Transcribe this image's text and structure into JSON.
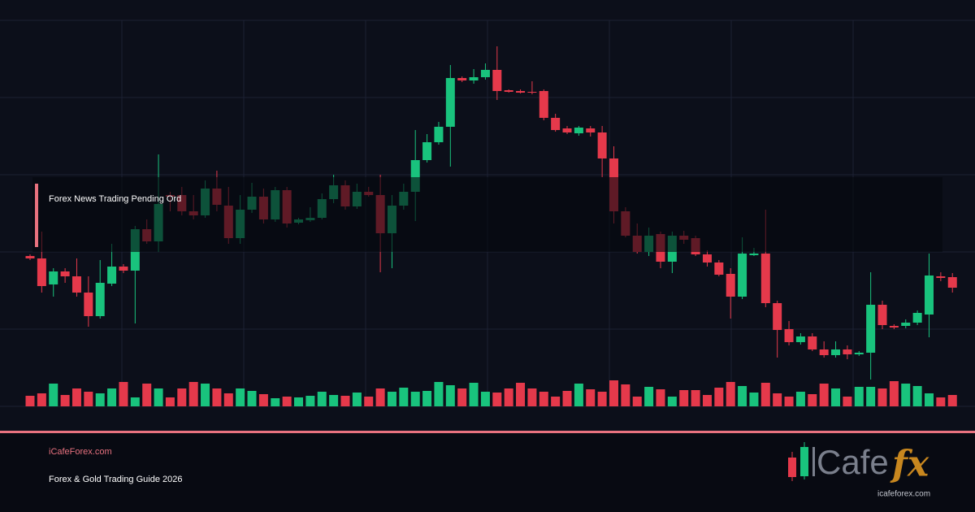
{
  "chart_data": {
    "type": "candlestick",
    "open": [
      370,
      364,
      300,
      332,
      320,
      280,
      222,
      302,
      344,
      334,
      436,
      406,
      520,
      520,
      480,
      470,
      536,
      494,
      414,
      484,
      516,
      460,
      532,
      452,
      458,
      464,
      510,
      544,
      492,
      528,
      520,
      426,
      494,
      528,
      606,
      650,
      688,
      808,
      802,
      810,
      828,
      778,
      776,
      774,
      776,
      710,
      684,
      672,
      684,
      674,
      610,
      480,
      420,
      380,
      424,
      356,
      420,
      414,
      374,
      354,
      326,
      270,
      372,
      376,
      254,
      190,
      158,
      172,
      140,
      126,
      140,
      128,
      132,
      250,
      198,
      198,
      206,
      226,
      320,
      318
    ],
    "close": [
      364,
      296,
      332,
      320,
      280,
      222,
      304,
      344,
      334,
      436,
      406,
      498,
      516,
      480,
      470,
      536,
      496,
      414,
      484,
      516,
      460,
      532,
      450,
      460,
      464,
      510,
      544,
      492,
      528,
      520,
      426,
      494,
      528,
      606,
      650,
      688,
      808,
      802,
      810,
      828,
      776,
      774,
      772,
      772,
      710,
      680,
      674,
      686,
      674,
      610,
      480,
      420,
      380,
      420,
      356,
      420,
      410,
      374,
      354,
      324,
      270,
      376,
      376,
      254,
      188,
      158,
      172,
      140,
      126,
      140,
      128,
      132,
      250,
      200,
      194,
      206,
      230,
      322,
      316,
      292
    ],
    "high": [
      374,
      430,
      340,
      340,
      364,
      320,
      360,
      400,
      350,
      444,
      460,
      620,
      528,
      540,
      520,
      556,
      580,
      540,
      520,
      550,
      536,
      540,
      540,
      464,
      490,
      524,
      570,
      556,
      548,
      540,
      570,
      520,
      548,
      680,
      670,
      700,
      840,
      812,
      830,
      844,
      886,
      780,
      780,
      800,
      780,
      720,
      690,
      690,
      690,
      690,
      640,
      490,
      450,
      440,
      430,
      430,
      432,
      420,
      384,
      360,
      340,
      416,
      390,
      484,
      260,
      210,
      180,
      180,
      160,
      160,
      150,
      136,
      330,
      260,
      202,
      214,
      236,
      376,
      330,
      328
    ],
    "low": [
      360,
      280,
      270,
      304,
      270,
      196,
      216,
      296,
      328,
      204,
      400,
      380,
      480,
      470,
      460,
      464,
      480,
      400,
      400,
      476,
      450,
      454,
      440,
      448,
      454,
      460,
      500,
      484,
      486,
      516,
      330,
      340,
      484,
      456,
      600,
      644,
      590,
      798,
      794,
      804,
      754,
      772,
      770,
      768,
      704,
      676,
      670,
      666,
      664,
      564,
      450,
      416,
      376,
      370,
      340,
      328,
      400,
      370,
      344,
      320,
      216,
      264,
      370,
      244,
      120,
      150,
      152,
      136,
      120,
      120,
      116,
      124,
      66,
      190,
      190,
      192,
      200,
      170,
      308,
      280
    ],
    "volume": [
      13,
      16,
      28,
      14,
      22,
      18,
      16,
      22,
      30,
      11,
      28,
      22,
      11,
      22,
      30,
      28,
      22,
      16,
      22,
      19,
      15,
      10,
      12,
      11,
      13,
      18,
      14,
      13,
      17,
      12,
      22,
      18,
      23,
      18,
      19,
      30,
      26,
      22,
      29,
      18,
      17,
      22,
      29,
      22,
      18,
      12,
      19,
      28,
      21,
      18,
      32,
      27,
      12,
      24,
      21,
      12,
      20,
      20,
      14,
      23,
      30,
      25,
      17,
      29,
      16,
      12,
      18,
      15,
      28,
      22,
      12,
      24,
      24,
      22,
      31,
      28,
      25,
      16,
      11,
      14
    ],
    "ylim": [
      0,
      950
    ],
    "volume_lim": [
      0,
      100
    ],
    "up_color": "#19c37d",
    "down_color": "#e5394b"
  },
  "overlay": {
    "title": "Forex News Trading Pending Ord"
  },
  "footer": {
    "site": "iCafeForex.com",
    "subtitle": "Forex & Gold Trading Guide 2026"
  },
  "logo": {
    "word": "Cafe",
    "mark": "fx",
    "url": "icafeforex.com"
  }
}
